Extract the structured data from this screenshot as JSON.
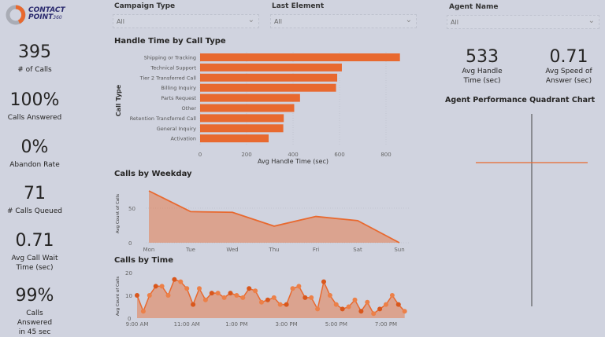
{
  "logo": {
    "line1": "CONTACT",
    "line2": "POINT",
    "suffix": "360",
    "colors": {
      "ring": "#a9acb5",
      "accent": "#e8692f",
      "text": "#2a2a6e"
    }
  },
  "kpis": [
    {
      "value": "395",
      "label": "# of Calls"
    },
    {
      "value": "100%",
      "label": "Calls Answered"
    },
    {
      "value": "0%",
      "label": "Abandon Rate"
    },
    {
      "value": "71",
      "label": "# Calls Queued"
    },
    {
      "value": "0.71",
      "label": "Avg Call Wait Time (sec)"
    },
    {
      "value": "99%",
      "label": "Calls Answered in 45 sec"
    }
  ],
  "filters": [
    {
      "label": "Campaign Type",
      "value": "All"
    },
    {
      "label": "Last Element",
      "value": "All"
    },
    {
      "label": "Agent Name",
      "value": "All"
    }
  ],
  "right_kpis": [
    {
      "value": "533",
      "label": "Avg Handle Time (sec)"
    },
    {
      "value": "0.71",
      "label": "Avg Speed of Answer (sec)"
    }
  ],
  "quadrant": {
    "title": "Agent Performance Quadrant Chart",
    "color": "#e8692f"
  },
  "accent": "#e8692f",
  "chart_data": [
    {
      "type": "bar",
      "title": "Handle Time by Call Type",
      "xlabel": "Avg Handle Time (sec)",
      "ylabel": "Call Type",
      "categories": [
        "Shipping or Tracking",
        "Technical Support",
        "Tier 2 Transferred Call",
        "Billing Inquiry",
        "Parts Request",
        "Other",
        "Retention Transferred Call",
        "General Inquiry",
        "Activation"
      ],
      "values": [
        860,
        610,
        590,
        585,
        430,
        405,
        360,
        358,
        295
      ],
      "xticks": [
        0,
        200,
        400,
        600,
        800
      ],
      "xlim": [
        0,
        860
      ]
    },
    {
      "type": "area",
      "title": "Calls by Weekday",
      "ylabel": "Avg Count of Calls",
      "categories": [
        "Mon",
        "Tue",
        "Wed",
        "Thu",
        "Fri",
        "Sat",
        "Sun"
      ],
      "values": [
        75,
        45,
        44,
        24,
        38,
        32,
        0
      ],
      "yticks": [
        0,
        50
      ],
      "ylim": [
        0,
        80
      ]
    },
    {
      "type": "area",
      "title": "Calls by Time",
      "ylabel": "Avg Count of Calls",
      "xticks": [
        "9:00 AM",
        "11:00 AM",
        "1:00 PM",
        "3:00 PM",
        "5:00 PM",
        "7:00 PM"
      ],
      "values": [
        10,
        3,
        10,
        14,
        14,
        10,
        17,
        16,
        13,
        6,
        13,
        8,
        11,
        11,
        9,
        11,
        10,
        9,
        13,
        12,
        7,
        8,
        9,
        6,
        6,
        13,
        14,
        9,
        9,
        4,
        16,
        10,
        6,
        4,
        5,
        8,
        3,
        7,
        2,
        4,
        6,
        10,
        6,
        3
      ],
      "yticks": [
        0,
        10,
        20
      ],
      "ylim": [
        0,
        20
      ]
    }
  ]
}
